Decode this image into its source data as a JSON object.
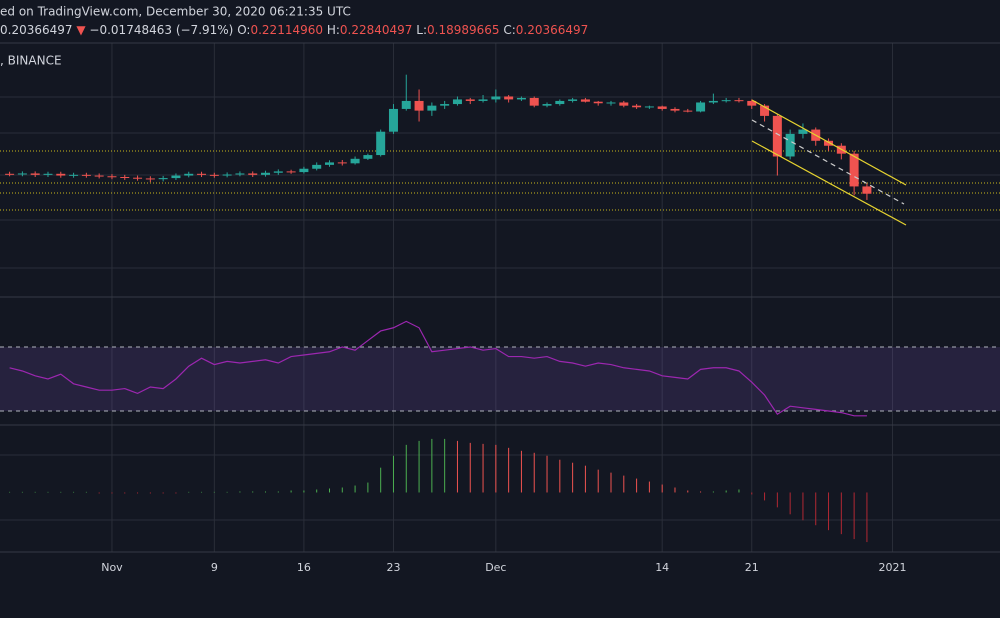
{
  "header": {
    "line1": "ed on TradingView.com, December 30, 2020 06:21:35 UTC",
    "price": "0.20366497",
    "arrow": "▼",
    "change": "−0.01748463 (−7.91%)",
    "o_label": "O:",
    "o": "0.22114960",
    "h_label": "H:",
    "h": "0.22840497",
    "l_label": "L:",
    "l": "0.18989665",
    "c_label": "C:",
    "c": "0.20366497",
    "exchange": ", BINANCE"
  },
  "chart_data": [
    {
      "type": "candlestick",
      "log": true,
      "up_color": "#26a69a",
      "down_color": "#ef5350",
      "grid": true,
      "xlim": [
        -8.75,
        69.4
      ],
      "ylim": [
        0.065,
        1.09
      ],
      "xticks": [
        {
          "value": 0,
          "label": "Nov"
        },
        {
          "value": 8,
          "label": "9"
        },
        {
          "value": 15,
          "label": "16"
        },
        {
          "value": 22,
          "label": "23"
        },
        {
          "value": 30,
          "label": "Dec"
        },
        {
          "value": 43,
          "label": "14"
        },
        {
          "value": 50,
          "label": "21"
        },
        {
          "value": 61,
          "label": "2021"
        }
      ],
      "x": [
        -8,
        -7,
        -6,
        -5,
        -4,
        -3,
        -2,
        -1,
        0,
        1,
        2,
        3,
        4,
        5,
        6,
        7,
        8,
        9,
        10,
        11,
        12,
        13,
        14,
        15,
        16,
        17,
        18,
        19,
        20,
        21,
        22,
        23,
        24,
        25,
        26,
        27,
        28,
        29,
        30,
        31,
        32,
        33,
        34,
        35,
        36,
        37,
        38,
        39,
        40,
        41,
        42,
        43,
        44,
        45,
        46,
        47,
        48,
        49,
        50,
        51,
        52,
        53,
        54,
        55,
        56,
        57,
        58,
        59
      ],
      "open": [
        0.255,
        0.254,
        0.256,
        0.252,
        0.255,
        0.25,
        0.252,
        0.25,
        0.248,
        0.246,
        0.244,
        0.242,
        0.24,
        0.243,
        0.25,
        0.255,
        0.252,
        0.25,
        0.253,
        0.256,
        0.252,
        0.258,
        0.262,
        0.26,
        0.27,
        0.282,
        0.29,
        0.287,
        0.302,
        0.315,
        0.41,
        0.53,
        0.58,
        0.52,
        0.55,
        0.56,
        0.59,
        0.58,
        0.59,
        0.61,
        0.59,
        0.6,
        0.55,
        0.56,
        0.58,
        0.59,
        0.575,
        0.565,
        0.57,
        0.55,
        0.54,
        0.545,
        0.53,
        0.52,
        0.515,
        0.57,
        0.58,
        0.585,
        0.58,
        0.55,
        0.49,
        0.31,
        0.4,
        0.42,
        0.37,
        0.35,
        0.32,
        0.2211496
      ],
      "high": [
        0.261,
        0.262,
        0.262,
        0.261,
        0.261,
        0.258,
        0.258,
        0.256,
        0.254,
        0.252,
        0.25,
        0.248,
        0.249,
        0.256,
        0.261,
        0.261,
        0.258,
        0.259,
        0.262,
        0.262,
        0.264,
        0.268,
        0.267,
        0.276,
        0.29,
        0.297,
        0.298,
        0.31,
        0.32,
        0.42,
        0.56,
        0.78,
        0.66,
        0.57,
        0.58,
        0.61,
        0.6,
        0.62,
        0.66,
        0.62,
        0.61,
        0.61,
        0.57,
        0.59,
        0.6,
        0.6,
        0.58,
        0.58,
        0.58,
        0.56,
        0.55,
        0.55,
        0.54,
        0.53,
        0.58,
        0.63,
        0.6,
        0.6,
        0.59,
        0.56,
        0.5,
        0.42,
        0.45,
        0.43,
        0.38,
        0.36,
        0.33,
        0.22840497
      ],
      "low": [
        0.248,
        0.248,
        0.246,
        0.246,
        0.244,
        0.244,
        0.244,
        0.242,
        0.24,
        0.238,
        0.236,
        0.232,
        0.234,
        0.238,
        0.245,
        0.246,
        0.244,
        0.245,
        0.248,
        0.246,
        0.247,
        0.252,
        0.255,
        0.256,
        0.265,
        0.276,
        0.28,
        0.283,
        0.298,
        0.31,
        0.4,
        0.52,
        0.46,
        0.49,
        0.53,
        0.55,
        0.56,
        0.57,
        0.57,
        0.57,
        0.58,
        0.54,
        0.54,
        0.55,
        0.57,
        0.57,
        0.55,
        0.55,
        0.54,
        0.53,
        0.53,
        0.52,
        0.51,
        0.51,
        0.51,
        0.56,
        0.57,
        0.57,
        0.53,
        0.46,
        0.25,
        0.3,
        0.38,
        0.35,
        0.33,
        0.3,
        0.2,
        0.18989665
      ],
      "close": [
        0.254,
        0.256,
        0.252,
        0.255,
        0.25,
        0.252,
        0.25,
        0.248,
        0.246,
        0.244,
        0.242,
        0.24,
        0.243,
        0.25,
        0.255,
        0.252,
        0.25,
        0.253,
        0.256,
        0.252,
        0.258,
        0.262,
        0.26,
        0.27,
        0.282,
        0.29,
        0.287,
        0.302,
        0.315,
        0.41,
        0.53,
        0.58,
        0.52,
        0.55,
        0.56,
        0.59,
        0.58,
        0.59,
        0.61,
        0.59,
        0.6,
        0.55,
        0.56,
        0.58,
        0.59,
        0.575,
        0.565,
        0.57,
        0.55,
        0.54,
        0.545,
        0.53,
        0.52,
        0.515,
        0.57,
        0.58,
        0.585,
        0.58,
        0.55,
        0.49,
        0.31,
        0.4,
        0.42,
        0.37,
        0.35,
        0.32,
        0.2211496,
        0.20366497
      ]
    },
    {
      "type": "line",
      "color": "#9c27b0",
      "band_color": "rgba(126,87,194,0.18)",
      "bands": [
        30,
        70
      ],
      "xlim": [
        -8.75,
        69.4
      ],
      "ylim": [
        21.25,
        100.6
      ],
      "x": [
        -8,
        -7,
        -6,
        -5,
        -4,
        -3,
        -2,
        -1,
        0,
        1,
        2,
        3,
        4,
        5,
        6,
        7,
        8,
        9,
        10,
        11,
        12,
        13,
        14,
        15,
        16,
        17,
        18,
        19,
        20,
        21,
        22,
        23,
        24,
        25,
        26,
        27,
        28,
        29,
        30,
        31,
        32,
        33,
        34,
        35,
        36,
        37,
        38,
        39,
        40,
        41,
        42,
        43,
        44,
        45,
        46,
        47,
        48,
        49,
        50,
        51,
        52,
        53,
        54,
        55,
        56,
        57,
        58,
        59
      ],
      "values": [
        57,
        55,
        52,
        50,
        53,
        47,
        45,
        43,
        43,
        44,
        41,
        45,
        44,
        50,
        58,
        63,
        59,
        61,
        60,
        61,
        62,
        60,
        64,
        65,
        66,
        67,
        70,
        68,
        74,
        80,
        82,
        86,
        82,
        67,
        68,
        69,
        70,
        68,
        69,
        64,
        64,
        63,
        64,
        61,
        60,
        58,
        60,
        59,
        57,
        56,
        55,
        52,
        51,
        50,
        56,
        57,
        57,
        55,
        48,
        40,
        28,
        33,
        32,
        31,
        30,
        29,
        27,
        27
      ]
    },
    {
      "type": "bar",
      "up_color": "#26a69a",
      "up_fade_color": "#b2dfdb",
      "down_color": "#ef5350",
      "down_fade_color": "#ffcdd2",
      "strong_up": "#4caf50",
      "strong_down": "#b22833",
      "xlim": [
        -8.75,
        69.4
      ],
      "ylim": [
        -60,
        67
      ],
      "x": [
        -8,
        -7,
        -6,
        -5,
        -4,
        -3,
        -2,
        -1,
        0,
        1,
        2,
        3,
        4,
        5,
        6,
        7,
        8,
        9,
        10,
        11,
        12,
        13,
        14,
        15,
        16,
        17,
        18,
        19,
        20,
        21,
        22,
        23,
        24,
        25,
        26,
        27,
        28,
        29,
        30,
        31,
        32,
        33,
        34,
        35,
        36,
        37,
        38,
        39,
        40,
        41,
        42,
        43,
        44,
        45,
        46,
        47,
        48,
        49,
        50,
        51,
        52,
        53,
        54,
        55,
        56,
        57,
        58,
        59
      ],
      "values": [
        0,
        0,
        0,
        0,
        0,
        0,
        0,
        -1,
        -1,
        -1,
        -1,
        -1,
        -1,
        -1,
        0,
        0,
        0,
        0,
        1,
        1,
        1,
        1,
        2,
        2,
        3,
        4,
        5,
        7,
        10,
        25,
        37,
        48,
        52,
        54,
        54,
        52,
        50,
        49,
        48,
        45,
        42,
        40,
        37,
        33,
        30,
        27,
        23,
        20,
        17,
        14,
        11,
        8,
        5,
        2,
        1,
        1,
        2,
        3,
        -2,
        -8,
        -15,
        -22,
        -28,
        -33,
        -38,
        -42,
        -47,
        -50
      ]
    }
  ]
}
